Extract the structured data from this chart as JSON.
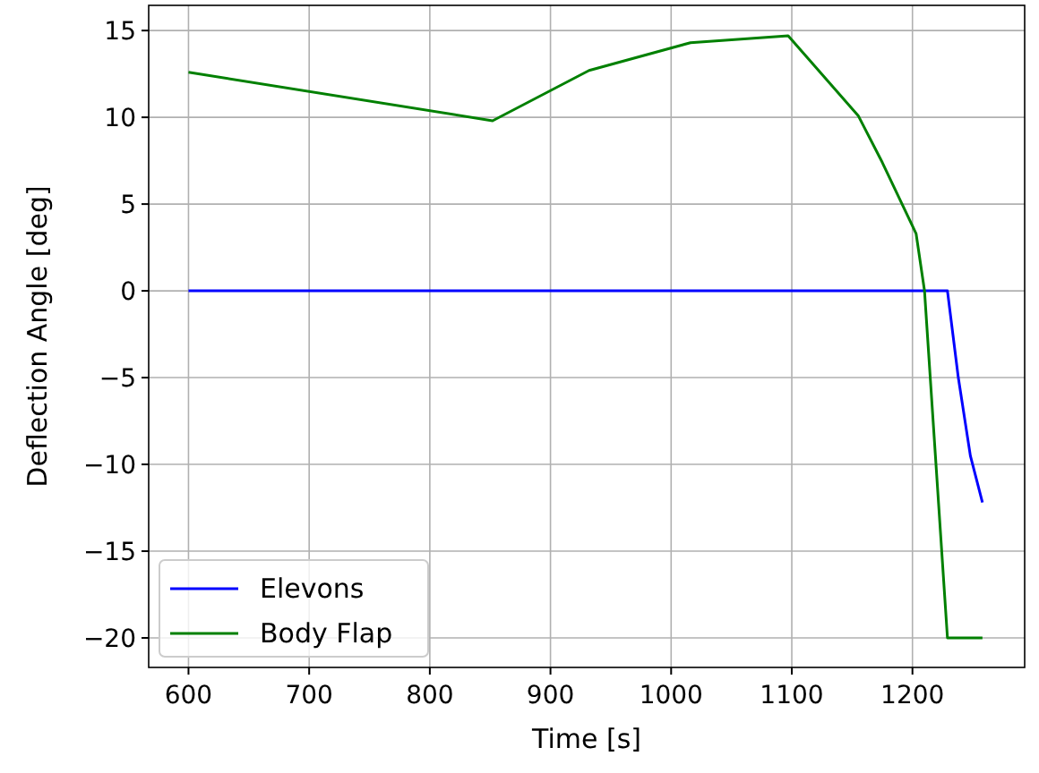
{
  "chart_data": {
    "type": "line",
    "xlabel": "Time [s]",
    "ylabel": "Deflection Angle [deg]",
    "xlim": [
      567,
      1293
    ],
    "xticks": [
      600,
      700,
      800,
      900,
      1000,
      1100,
      1200
    ],
    "ylim": [
      -21.7,
      16.45
    ],
    "yticks": [
      -20,
      -15,
      -10,
      -5,
      0,
      5,
      10,
      15
    ],
    "grid": true,
    "legend": "bottom left",
    "series": [
      {
        "name": "Elevons",
        "color": "#0000ff",
        "x": [
          600,
          1229,
          1238,
          1248,
          1258
        ],
        "values": [
          0,
          0,
          -5,
          -9.5,
          -12.2
        ]
      },
      {
        "name": "Body Flap",
        "color": "#008000",
        "x": [
          600,
          852,
          932,
          1016,
          1097,
          1155,
          1175,
          1203,
          1210,
          1229,
          1258
        ],
        "values": [
          12.6,
          9.8,
          12.7,
          14.3,
          14.7,
          10.1,
          7.4,
          3.3,
          0,
          -20,
          -20
        ]
      }
    ]
  }
}
